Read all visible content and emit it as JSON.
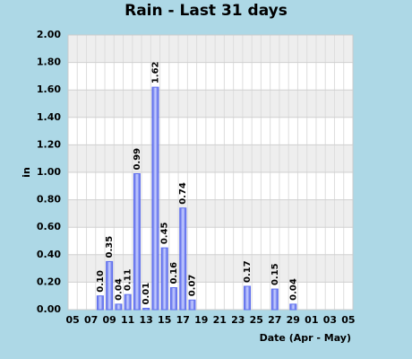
{
  "chart_data": {
    "type": "bar",
    "title": "Rain - Last 31 days",
    "y_label": "in",
    "x_label": "Date (Apr - May)",
    "categories": [
      "05",
      null,
      "07",
      null,
      "09",
      null,
      "11",
      null,
      "13",
      null,
      "15",
      null,
      "17",
      null,
      "19",
      null,
      "21",
      null,
      "23",
      null,
      "25",
      null,
      "27",
      null,
      "29",
      null,
      "01",
      null,
      "03",
      null,
      "05"
    ],
    "values": [
      null,
      null,
      null,
      0.1,
      0.35,
      0.04,
      0.11,
      0.99,
      0.01,
      1.62,
      0.45,
      0.16,
      0.74,
      0.07,
      null,
      null,
      null,
      null,
      null,
      0.17,
      null,
      null,
      0.15,
      null,
      0.04,
      null,
      null,
      null,
      null,
      null,
      null
    ],
    "value_labels": [
      null,
      null,
      null,
      "0.10",
      "0.35",
      "0.04",
      "0.11",
      "0.99",
      "0.01",
      "1.62",
      "0.45",
      "0.16",
      "0.74",
      "0.07",
      null,
      null,
      null,
      null,
      null,
      "0.17",
      null,
      null,
      "0.15",
      null,
      "0.04",
      null,
      null,
      null,
      null,
      null,
      null
    ],
    "color": "#6070ee",
    "ylim": [
      0,
      2
    ],
    "yticks": [
      {
        "value": 0,
        "label": "0.00"
      },
      {
        "value": 0.2,
        "label": "0.20"
      },
      {
        "value": 0.4,
        "label": "0.40"
      },
      {
        "value": 0.6,
        "label": "0.60"
      },
      {
        "value": 0.8,
        "label": "0.80"
      },
      {
        "value": 1,
        "label": "1.00"
      },
      {
        "value": 1.2,
        "label": "1.20"
      },
      {
        "value": 1.4,
        "label": "1.40"
      },
      {
        "value": 1.6,
        "label": "1.60"
      },
      {
        "value": 1.8,
        "label": "1.80"
      },
      {
        "value": 2,
        "label": "2.00"
      }
    ],
    "grid": true
  }
}
